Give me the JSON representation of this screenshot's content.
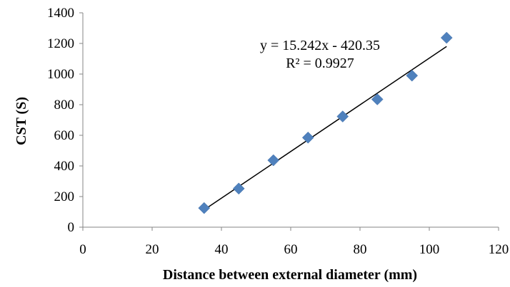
{
  "chart_data": {
    "type": "scatter",
    "title": "",
    "xlabel": "Distance between external diameter (mm)",
    "ylabel": "CST (S)",
    "xlim": [
      0,
      120
    ],
    "ylim": [
      0,
      1400
    ],
    "xticks": [
      0,
      20,
      40,
      60,
      80,
      100,
      120
    ],
    "yticks": [
      0,
      200,
      400,
      600,
      800,
      1000,
      1200,
      1400
    ],
    "xtick_labels": [
      "0",
      "20",
      "40",
      "60",
      "80",
      "100",
      "120"
    ],
    "ytick_labels": [
      "0",
      "200",
      "400",
      "600",
      "800",
      "1000",
      "1200",
      "1400"
    ],
    "grid": false,
    "legend": "none",
    "marker": "diamond",
    "marker_color": "#4F81BD",
    "series": [
      {
        "x": [
          35,
          45,
          55,
          65,
          75,
          85,
          95,
          105
        ],
        "y": [
          125,
          252,
          437,
          585,
          723,
          835,
          990,
          1237
        ]
      }
    ],
    "trendline": {
      "type": "linear",
      "slope": 15.242,
      "intercept": -420.35,
      "x_range": [
        35,
        105
      ],
      "color": "#000000",
      "equation_label": "y = 15.242x - 420.35",
      "r2_label": "R² = 0.9927"
    }
  }
}
